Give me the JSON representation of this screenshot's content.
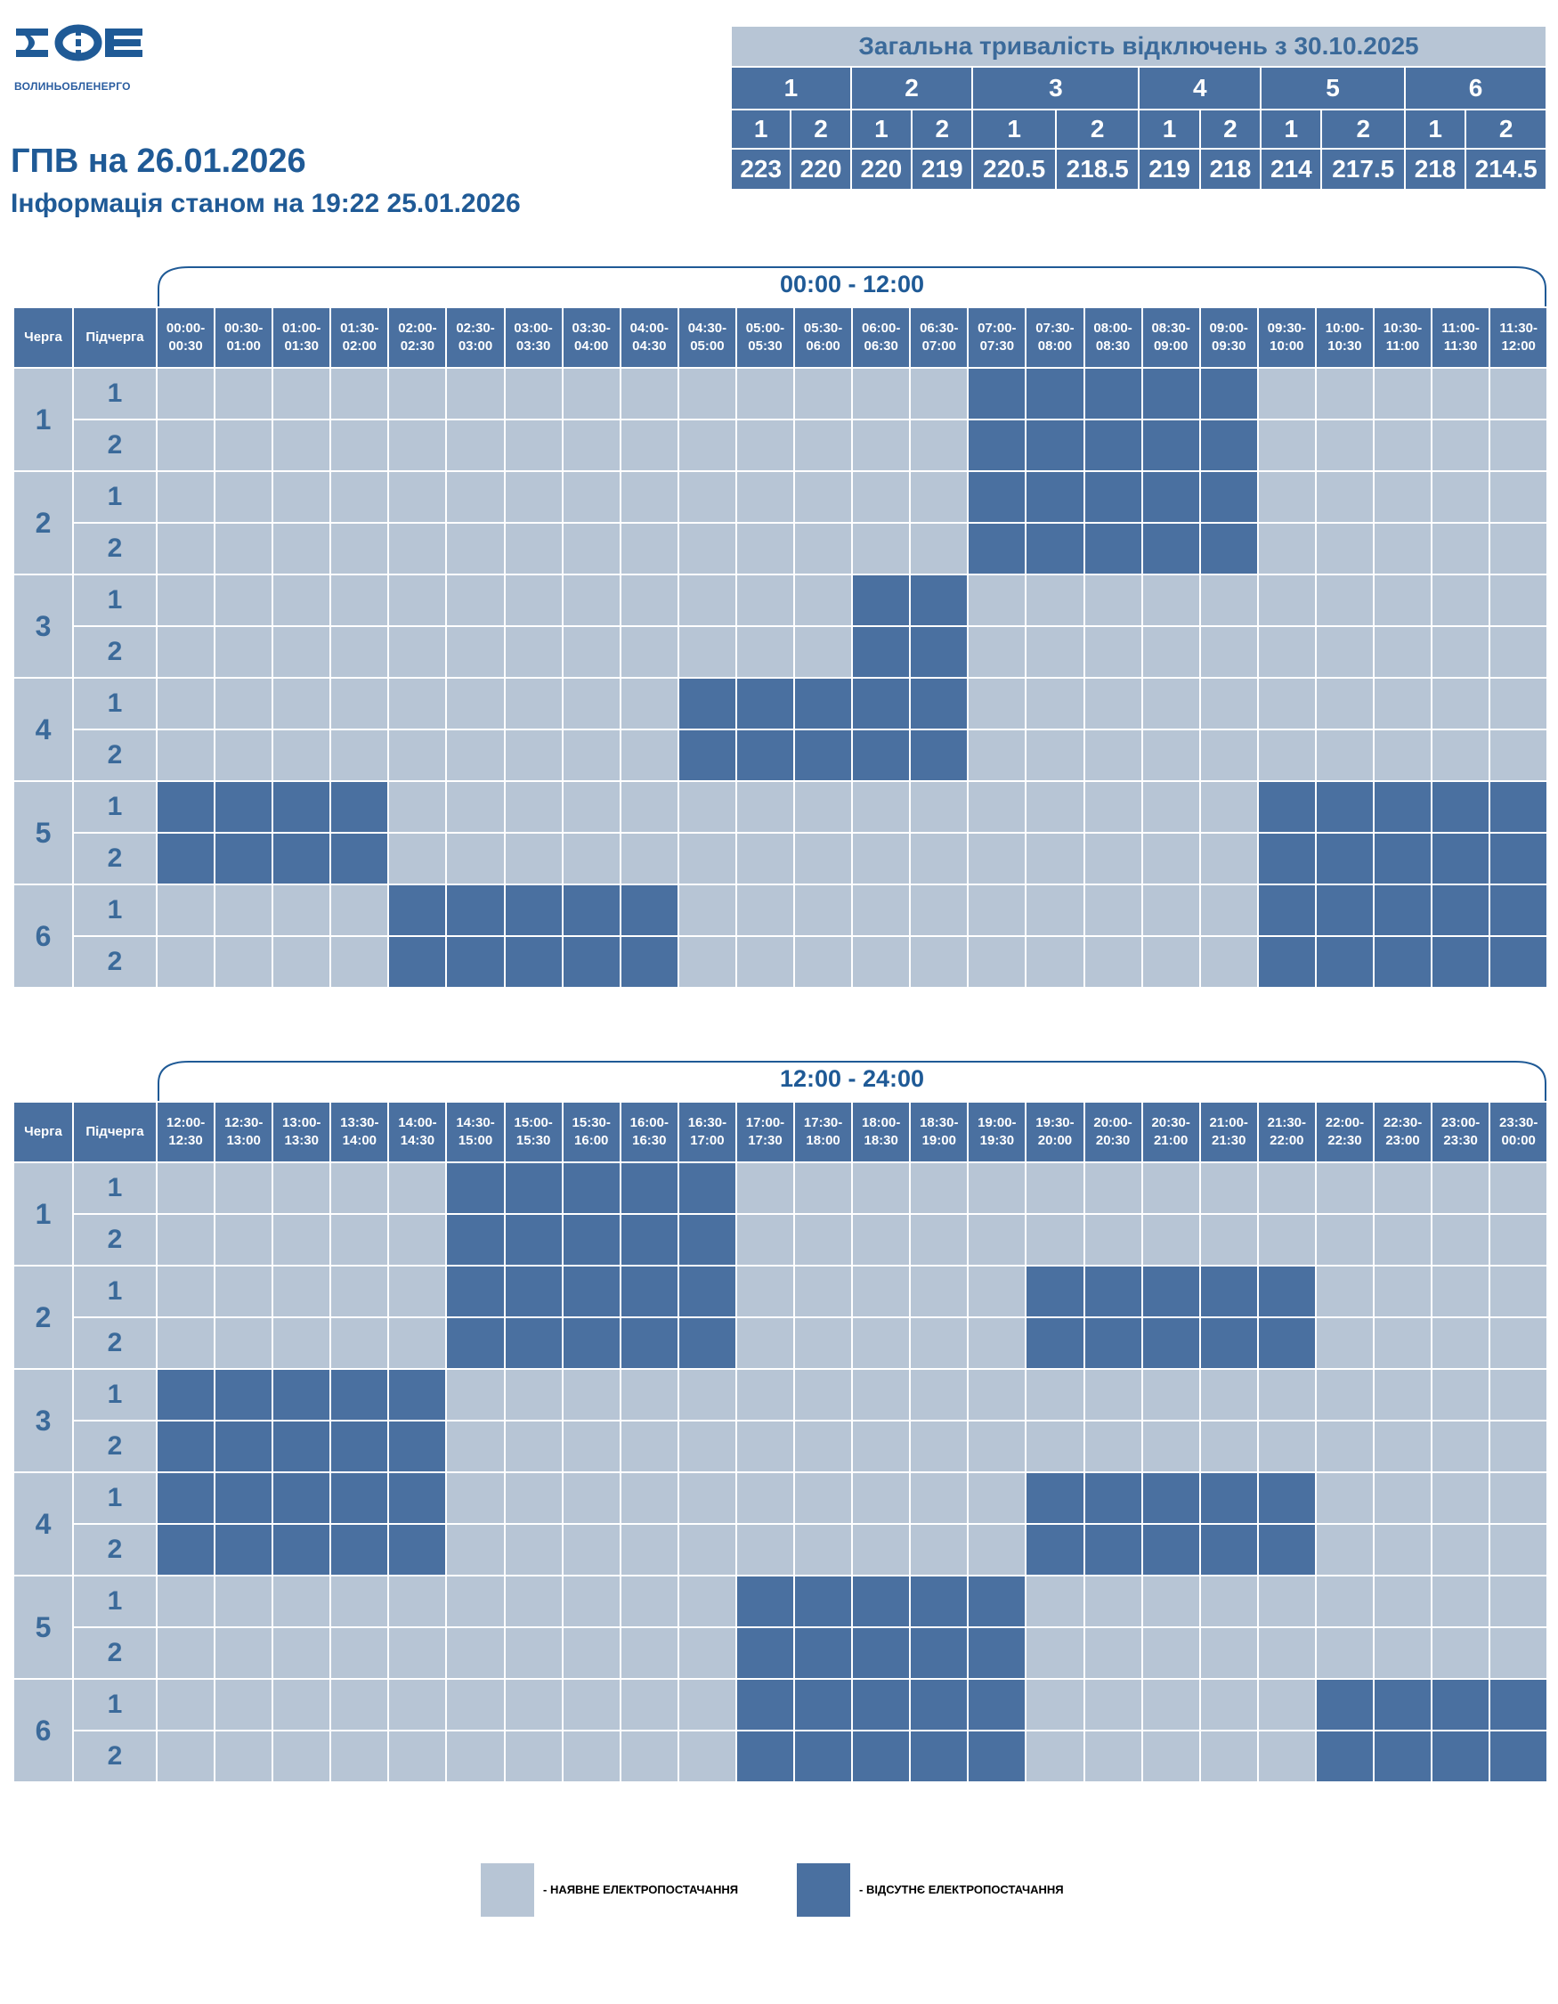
{
  "header": {
    "logo_text": "ВОЛИНЬОБЛЕНЕРГО",
    "title": "ГПВ на 26.01.2026",
    "subtitle": "Інформація станом на 19:22 25.01.2026"
  },
  "summary": {
    "title": "Загальна тривалість відключень з 30.10.2025",
    "queues": [
      "1",
      "2",
      "3",
      "4",
      "5",
      "6"
    ],
    "subqueues": [
      "1",
      "2",
      "1",
      "2",
      "1",
      "2",
      "1",
      "2",
      "1",
      "2",
      "1",
      "2"
    ],
    "values": [
      "223",
      "220",
      "220",
      "219",
      "220.5",
      "218.5",
      "219",
      "218",
      "214",
      "217.5",
      "218",
      "214.5"
    ]
  },
  "schedule": {
    "col_queue": "Черга",
    "col_subqueue": "Підчерга",
    "rows": [
      {
        "queue": "1",
        "sub": "1"
      },
      {
        "queue": "1",
        "sub": "2"
      },
      {
        "queue": "2",
        "sub": "1"
      },
      {
        "queue": "2",
        "sub": "2"
      },
      {
        "queue": "3",
        "sub": "1"
      },
      {
        "queue": "3",
        "sub": "2"
      },
      {
        "queue": "4",
        "sub": "1"
      },
      {
        "queue": "4",
        "sub": "2"
      },
      {
        "queue": "5",
        "sub": "1"
      },
      {
        "queue": "5",
        "sub": "2"
      },
      {
        "queue": "6",
        "sub": "1"
      },
      {
        "queue": "6",
        "sub": "2"
      }
    ],
    "sections": [
      {
        "label": "00:00 - 12:00",
        "times": [
          "00:00-00:30",
          "00:30-01:00",
          "01:00-01:30",
          "01:30-02:00",
          "02:00-02:30",
          "02:30-03:00",
          "03:00-03:30",
          "03:30-04:00",
          "04:00-04:30",
          "04:30-05:00",
          "05:00-05:30",
          "05:30-06:00",
          "06:00-06:30",
          "06:30-07:00",
          "07:00-07:30",
          "07:30-08:00",
          "08:00-08:30",
          "08:30-09:00",
          "09:00-09:30",
          "09:30-10:00",
          "10:00-10:30",
          "10:30-11:00",
          "11:00-11:30",
          "11:30-12:00"
        ],
        "status": [
          "000000000000001111100000",
          "000000000000001111100000",
          "000000000000001111100000",
          "000000000000001111100000",
          "000000000000110000000000",
          "000000000000110000000000",
          "000000000111110000000000",
          "000000000111110000000000",
          "111100000000000000011111",
          "111100000000000000011111",
          "000011111000000000011111",
          "000011111000000000011111"
        ]
      },
      {
        "label": "12:00 - 24:00",
        "times": [
          "12:00-12:30",
          "12:30-13:00",
          "13:00-13:30",
          "13:30-14:00",
          "14:00-14:30",
          "14:30-15:00",
          "15:00-15:30",
          "15:30-16:00",
          "16:00-16:30",
          "16:30-17:00",
          "17:00-17:30",
          "17:30-18:00",
          "18:00-18:30",
          "18:30-19:00",
          "19:00-19:30",
          "19:30-20:00",
          "20:00-20:30",
          "20:30-21:00",
          "21:00-21:30",
          "21:30-22:00",
          "22:00-22:30",
          "22:30-23:00",
          "23:00-23:30",
          "23:30-00:00"
        ],
        "status": [
          "000001111100000000000000",
          "000001111100000000000000",
          "000001111100000111110000",
          "000001111100000111110000",
          "111110000000000000000000",
          "111110000000000000000000",
          "111110000000000111110000",
          "111110000000000111110000",
          "000000000011111000000000",
          "000000000011111000000000",
          "000000000011111000001111",
          "000000000011111000001111"
        ]
      }
    ]
  },
  "legend": {
    "on_label": "- НАЯВНЕ ЕЛЕКТРОПОСТАЧАННЯ",
    "off_label": "- ВІДСУТНЄ ЕЛЕКТРОПОСТАЧАННЯ"
  },
  "colors": {
    "available": "#b7c5d5",
    "outage": "#4a70a0",
    "title": "#1f5a96"
  }
}
